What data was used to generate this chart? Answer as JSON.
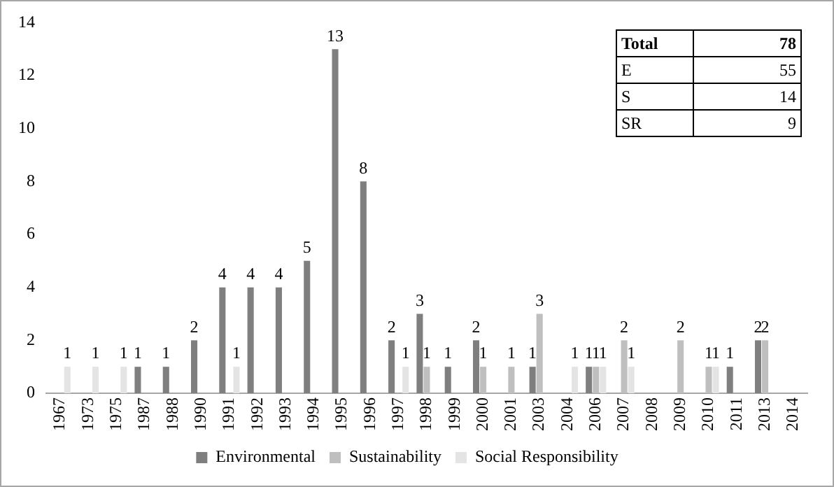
{
  "chart_data": {
    "type": "bar",
    "categories": [
      "1967",
      "1973",
      "1975",
      "1987",
      "1988",
      "1990",
      "1991",
      "1992",
      "1993",
      "1994",
      "1995",
      "1996",
      "1997",
      "1998",
      "1999",
      "2000",
      "2001",
      "2003",
      "2004",
      "2006",
      "2007",
      "2008",
      "2009",
      "2010",
      "2011",
      "2013",
      "2014"
    ],
    "series": [
      {
        "name": "Environmental",
        "color": "#7f7f7f",
        "values": [
          null,
          null,
          null,
          1,
          1,
          2,
          4,
          4,
          4,
          5,
          13,
          8,
          2,
          3,
          1,
          2,
          null,
          1,
          null,
          1,
          null,
          null,
          null,
          null,
          1,
          2,
          null
        ]
      },
      {
        "name": "Sustainability",
        "color": "#bfbfbf",
        "values": [
          null,
          null,
          null,
          null,
          null,
          null,
          null,
          null,
          null,
          null,
          null,
          null,
          null,
          1,
          null,
          1,
          1,
          3,
          null,
          1,
          2,
          null,
          2,
          1,
          null,
          2,
          null
        ]
      },
      {
        "name": "Social Responsibility",
        "color": "#e4e4e4",
        "values": [
          1,
          1,
          1,
          null,
          null,
          null,
          1,
          null,
          null,
          null,
          null,
          null,
          1,
          null,
          null,
          null,
          null,
          null,
          1,
          1,
          1,
          null,
          null,
          1,
          null,
          null,
          null
        ]
      }
    ],
    "ylim": [
      0,
      14
    ],
    "yticks": [
      0,
      2,
      4,
      6,
      8,
      10,
      12,
      14
    ],
    "data_labels": true,
    "legend": "bottom",
    "annotations": [
      "Total 78",
      "E 55",
      "S 14",
      "SR 9"
    ]
  }
}
